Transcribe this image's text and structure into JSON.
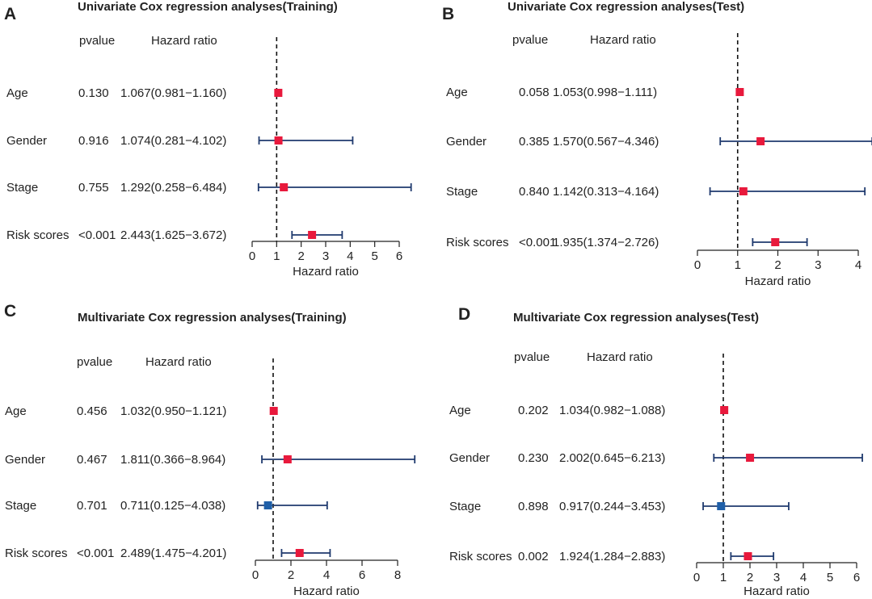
{
  "colors": {
    "risk_marker": "#e8193c",
    "protective_marker": "#1f5fa8",
    "ci_line": "#1f3a6e",
    "axis": "#222222",
    "reference_line": "#111111"
  },
  "chart_data": [
    {
      "type": "forest",
      "panel_label": "A",
      "title": "Univariate Cox regression analyses(Training)",
      "column_headers": {
        "pvalue": "pvalue",
        "hazard_ratio": "Hazard ratio"
      },
      "xlabel": "Hazard ratio",
      "xlim": [
        0,
        6
      ],
      "xticks": [
        0,
        1,
        2,
        3,
        4,
        5,
        6
      ],
      "reference_value": 1,
      "rows": [
        {
          "variable": "Age",
          "pvalue": "0.130",
          "hr_text": "1.067(0.981−1.160)",
          "hr": 1.067,
          "lower": 0.981,
          "upper": 1.16
        },
        {
          "variable": "Gender",
          "pvalue": "0.916",
          "hr_text": "1.074(0.281−4.102)",
          "hr": 1.074,
          "lower": 0.281,
          "upper": 4.102
        },
        {
          "variable": "Stage",
          "pvalue": "0.755",
          "hr_text": "1.292(0.258−6.484)",
          "hr": 1.292,
          "lower": 0.258,
          "upper": 6.484
        },
        {
          "variable": "Risk scores",
          "pvalue": "<0.001",
          "hr_text": "2.443(1.625−3.672)",
          "hr": 2.443,
          "lower": 1.625,
          "upper": 3.672
        }
      ]
    },
    {
      "type": "forest",
      "panel_label": "B",
      "title": "Univariate Cox regression analyses(Test)",
      "column_headers": {
        "pvalue": "pvalue",
        "hazard_ratio": "Hazard ratio"
      },
      "xlabel": "Hazard ratio",
      "xlim": [
        0,
        4
      ],
      "xticks": [
        0,
        1,
        2,
        3,
        4
      ],
      "reference_value": 1,
      "rows": [
        {
          "variable": "Age",
          "pvalue": "0.058",
          "hr_text": "1.053(0.998−1.111)",
          "hr": 1.053,
          "lower": 0.998,
          "upper": 1.111
        },
        {
          "variable": "Gender",
          "pvalue": "0.385",
          "hr_text": "1.570(0.567−4.346)",
          "hr": 1.57,
          "lower": 0.567,
          "upper": 4.346
        },
        {
          "variable": "Stage",
          "pvalue": "0.840",
          "hr_text": "1.142(0.313−4.164)",
          "hr": 1.142,
          "lower": 0.313,
          "upper": 4.164
        },
        {
          "variable": "Risk scores",
          "pvalue": "<0.001",
          "hr_text": "1.935(1.374−2.726)",
          "hr": 1.935,
          "lower": 1.374,
          "upper": 2.726
        }
      ]
    },
    {
      "type": "forest",
      "panel_label": "C",
      "title": "Multivariate Cox regression analyses(Training)",
      "column_headers": {
        "pvalue": "pvalue",
        "hazard_ratio": "Hazard ratio"
      },
      "xlabel": "Hazard ratio",
      "xlim": [
        0,
        8
      ],
      "xticks": [
        0,
        2,
        4,
        6,
        8
      ],
      "reference_value": 1,
      "rows": [
        {
          "variable": "Age",
          "pvalue": "0.456",
          "hr_text": "1.032(0.950−1.121)",
          "hr": 1.032,
          "lower": 0.95,
          "upper": 1.121
        },
        {
          "variable": "Gender",
          "pvalue": "0.467",
          "hr_text": "1.811(0.366−8.964)",
          "hr": 1.811,
          "lower": 0.366,
          "upper": 8.964
        },
        {
          "variable": "Stage",
          "pvalue": "0.701",
          "hr_text": "0.711(0.125−4.038)",
          "hr": 0.711,
          "lower": 0.125,
          "upper": 4.038
        },
        {
          "variable": "Risk scores",
          "pvalue": "<0.001",
          "hr_text": "2.489(1.475−4.201)",
          "hr": 2.489,
          "lower": 1.475,
          "upper": 4.201
        }
      ]
    },
    {
      "type": "forest",
      "panel_label": "D",
      "title": "Multivariate Cox regression analyses(Test)",
      "column_headers": {
        "pvalue": "pvalue",
        "hazard_ratio": "Hazard ratio"
      },
      "xlabel": "Hazard ratio",
      "xlim": [
        0,
        6
      ],
      "xticks": [
        0,
        1,
        2,
        3,
        4,
        5,
        6
      ],
      "reference_value": 1,
      "rows": [
        {
          "variable": "Age",
          "pvalue": "0.202",
          "hr_text": "1.034(0.982−1.088)",
          "hr": 1.034,
          "lower": 0.982,
          "upper": 1.088
        },
        {
          "variable": "Gender",
          "pvalue": "0.230",
          "hr_text": "2.002(0.645−6.213)",
          "hr": 2.002,
          "lower": 0.645,
          "upper": 6.213
        },
        {
          "variable": "Stage",
          "pvalue": "0.898",
          "hr_text": "0.917(0.244−3.453)",
          "hr": 0.917,
          "lower": 0.244,
          "upper": 3.453
        },
        {
          "variable": "Risk scores",
          "pvalue": "0.002",
          "hr_text": "1.924(1.284−2.883)",
          "hr": 1.924,
          "lower": 1.284,
          "upper": 2.883
        }
      ]
    }
  ]
}
